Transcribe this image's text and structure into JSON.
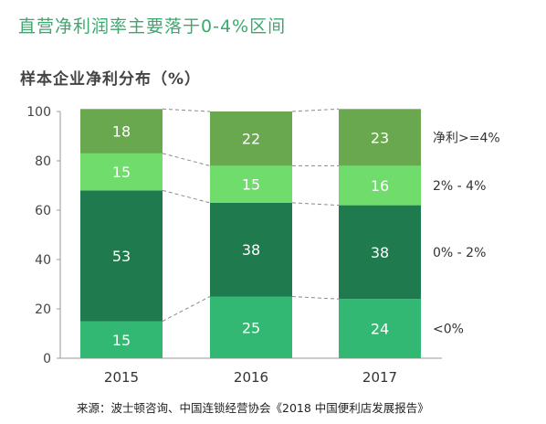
{
  "title": "直营净利润率主要落于0-4%区间",
  "subtitle": "样本企业净利分布（%）",
  "source": "来源：波士顿咨询、中国连锁经营协会《2018 中国便利店发展报告》",
  "chart_data": {
    "type": "bar",
    "stacked": true,
    "categories": [
      "2015",
      "2016",
      "2017"
    ],
    "ylim": [
      0,
      100
    ],
    "yticks": [
      0,
      20,
      40,
      60,
      80,
      100
    ],
    "grid": false,
    "legend_position": "right",
    "series": [
      {
        "name": "<0%",
        "values": [
          15,
          25,
          24
        ],
        "color": "#33b873"
      },
      {
        "name": "0% - 2%",
        "values": [
          53,
          38,
          38
        ],
        "color": "#1f7a4e"
      },
      {
        "name": "2% - 4%",
        "values": [
          15,
          15,
          16
        ],
        "color": "#6fdc6c"
      },
      {
        "name": "净利>=4%",
        "values": [
          18,
          22,
          23
        ],
        "color": "#6aa84f"
      }
    ]
  }
}
